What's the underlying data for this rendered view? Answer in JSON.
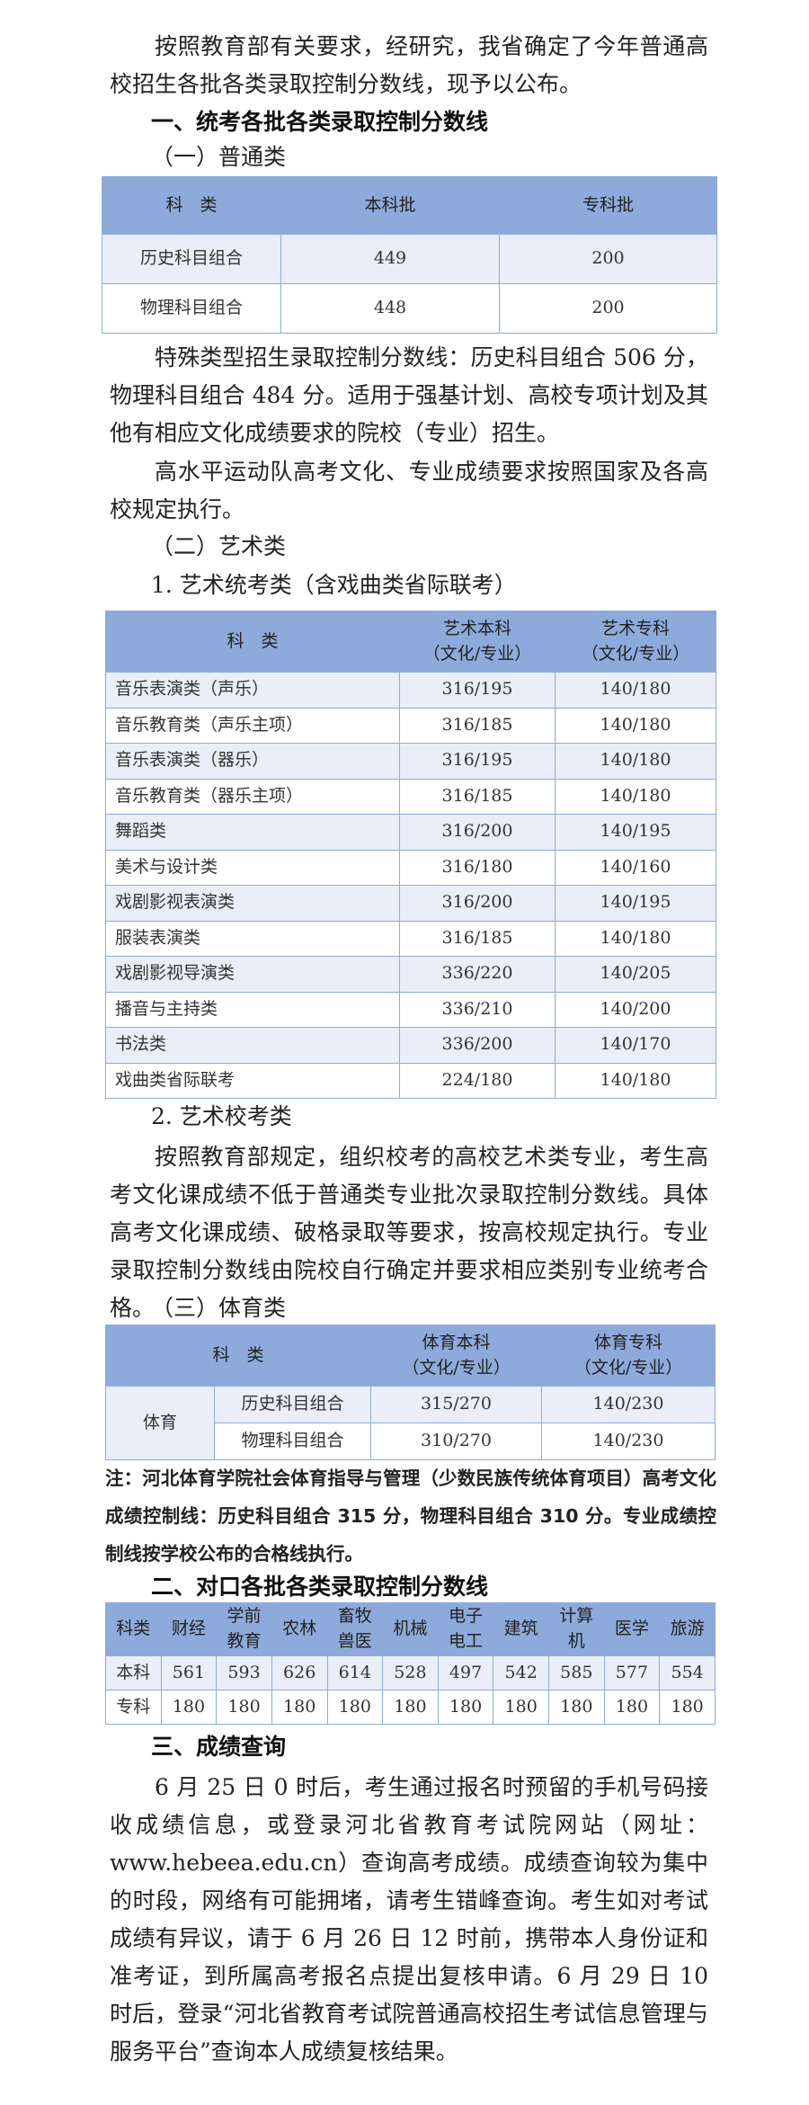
{
  "intro": "按照教育部有关要求，经研究，我省确定了今年普通高校招生各批各类录取控制分数线，现予以公布。",
  "section1_title": "一、统考各批各类录取控制分数线",
  "sub1_title": "（一）普通类",
  "table_general": {
    "headers": [
      "科　类",
      "本科批",
      "专科批"
    ],
    "rows": [
      [
        "历史科目组合",
        "449",
        "200"
      ],
      [
        "物理科目组合",
        "448",
        "200"
      ]
    ]
  },
  "special_note": "特殊类型招生录取控制分数线：历史科目组合 506 分，物理科目组合 484 分。适用于强基计划、高校专项计划及其他有相应文化成绩要求的院校（专业）招生。",
  "high_level_note": "高水平运动队高考文化、专业成绩要求按照国家及各高校规定执行。",
  "sub2_title": "（二）艺术类",
  "art1_title": "1. 艺术统考类（含戏曲类省际联考）",
  "table_art": {
    "headers": [
      [
        "科　类"
      ],
      [
        "艺术本科",
        "（文化/专业）"
      ],
      [
        "艺术专科",
        "（文化/专业）"
      ]
    ],
    "rows": [
      [
        "音乐表演类（声乐）",
        "316/195",
        "140/180"
      ],
      [
        "音乐教育类（声乐主项）",
        "316/185",
        "140/180"
      ],
      [
        "音乐表演类（器乐）",
        "316/195",
        "140/180"
      ],
      [
        "音乐教育类（器乐主项）",
        "316/185",
        "140/180"
      ],
      [
        "舞蹈类",
        "316/200",
        "140/195"
      ],
      [
        "美术与设计类",
        "316/180",
        "140/160"
      ],
      [
        "戏剧影视表演类",
        "316/200",
        "140/195"
      ],
      [
        "服装表演类",
        "316/185",
        "140/180"
      ],
      [
        "戏剧影视导演类",
        "336/220",
        "140/205"
      ],
      [
        "播音与主持类",
        "336/210",
        "140/200"
      ],
      [
        "书法类",
        "336/200",
        "140/170"
      ],
      [
        "戏曲类省际联考",
        "224/180",
        "140/180"
      ]
    ]
  },
  "art2_title": "2. 艺术校考类",
  "art2_text": "按照教育部规定，组织校考的高校艺术类专业，考生高考文化课成绩不低于普通类专业批次录取控制分数线。具体高考文化课成绩、破格录取等要求，按高校规定执行。专业录取控制分数线由院校自行确定并要求相应类别专业统考合格。",
  "sub3_title": "（三）体育类",
  "table_pe": {
    "headers": [
      [
        "科　类"
      ],
      [
        "体育本科",
        "（文化/专业）"
      ],
      [
        "体育专科",
        "（文化/专业）"
      ]
    ],
    "group": "体育",
    "rows": [
      [
        "历史科目组合",
        "315/270",
        "140/230"
      ],
      [
        "物理科目组合",
        "310/270",
        "140/230"
      ]
    ]
  },
  "pe_note": "注：河北体育学院社会体育指导与管理（少数民族传统体育项目）高考文化成绩控制线：历史科目组合 315 分，物理科目组合 310 分。专业成绩控制线按学校公布的合格线执行。",
  "section2_title": "二、对口各批各类录取控制分数线",
  "table_voc": {
    "headers": [
      [
        "科类"
      ],
      [
        "财经"
      ],
      [
        "学前",
        "教育"
      ],
      [
        "农林"
      ],
      [
        "畜牧",
        "兽医"
      ],
      [
        "机械"
      ],
      [
        "电子",
        "电工"
      ],
      [
        "建筑"
      ],
      [
        "计算",
        "机"
      ],
      [
        "医学"
      ],
      [
        "旅游"
      ]
    ],
    "rows": [
      [
        "本科",
        "561",
        "593",
        "626",
        "614",
        "528",
        "497",
        "542",
        "585",
        "577",
        "554"
      ],
      [
        "专科",
        "180",
        "180",
        "180",
        "180",
        "180",
        "180",
        "180",
        "180",
        "180",
        "180"
      ]
    ]
  },
  "section3_title": "三、成绩查询",
  "query_text": "6 月 25 日 0 时后，考生通过报名时预留的手机号码接收成绩信息，或登录河北省教育考试院网站（网址：www.hebeea.edu.cn）查询高考成绩。成绩查询较为集中的时段，网络有可能拥堵，请考生错峰查询。考生如对考试成绩有异议，请于 6 月 26 日 12 时前，携带本人身份证和准考证，到所属高考报名点提出复核申请。6 月 29 日 10 时后，登录“河北省教育考试院普通高校招生考试信息管理与服务平台”查询本人成绩复核结果。",
  "colors": {
    "header_bg": "#8EAADB",
    "alt_row_bg": "#E9EEF8",
    "border": "#8EAADB"
  }
}
